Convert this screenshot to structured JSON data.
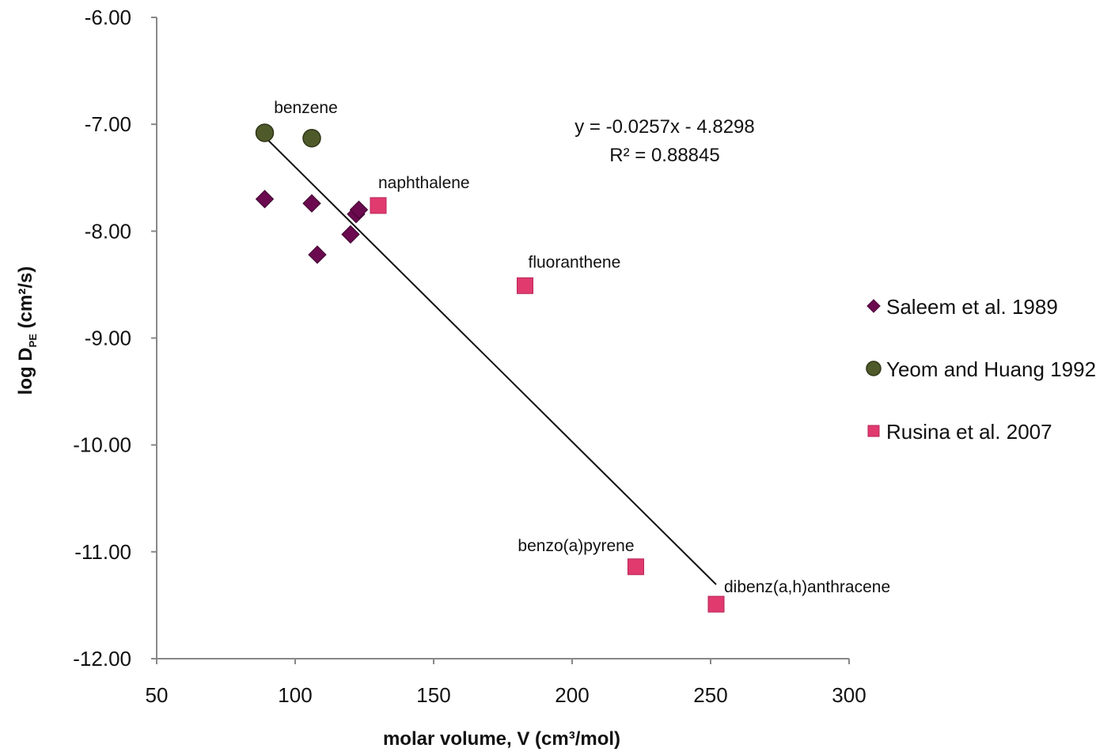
{
  "chart_data": {
    "type": "scatter",
    "title": "",
    "xlabel": "molar volume, V (cm³/mol)",
    "ylabel": "log D",
    "ylabel_sub": "PE",
    "ylabel_suffix": " (cm²/s)",
    "xlim": [
      50,
      300
    ],
    "ylim": [
      -12,
      -6
    ],
    "x_ticks": [
      50,
      100,
      150,
      200,
      250,
      300
    ],
    "x_tick_labels": [
      "50",
      "100",
      "150",
      "200",
      "250",
      "300"
    ],
    "y_ticks": [
      -6,
      -7,
      -8,
      -9,
      -10,
      -11,
      -12
    ],
    "y_tick_labels": [
      "-6.00",
      "-7.00",
      "-8.00",
      "-9.00",
      "-10.00",
      "-11.00",
      "-12.00"
    ],
    "grid": false,
    "legend_position": "right",
    "series": [
      {
        "name": "Saleem et al. 1989",
        "marker": "diamond",
        "color": "#6b0a4e",
        "points": [
          {
            "x": 89,
            "y": -7.7
          },
          {
            "x": 106,
            "y": -7.74
          },
          {
            "x": 108,
            "y": -8.22
          },
          {
            "x": 120,
            "y": -8.03
          },
          {
            "x": 122,
            "y": -7.84
          },
          {
            "x": 123,
            "y": -7.8
          }
        ]
      },
      {
        "name": "Yeom and Huang 1992",
        "marker": "circle",
        "color": "#4f5a2a",
        "points": [
          {
            "x": 89,
            "y": -7.08
          },
          {
            "x": 106,
            "y": -7.13
          }
        ]
      },
      {
        "name": "Rusina et al. 2007",
        "marker": "square",
        "color": "#e03a6f",
        "points": [
          {
            "x": 130,
            "y": -7.76
          },
          {
            "x": 183,
            "y": -8.51
          },
          {
            "x": 223,
            "y": -11.14
          },
          {
            "x": 252,
            "y": -11.49
          }
        ]
      }
    ],
    "trendline": {
      "x_start": 89,
      "x_end": 252,
      "slope": -0.0257,
      "intercept": -4.8298,
      "equation": "y = -0.0257x - 4.8298",
      "r2_label": "R² = 0.88845"
    },
    "annotations": [
      {
        "text": "benzene",
        "x": 89,
        "y": -7.08
      },
      {
        "text": "naphthalene",
        "x": 130,
        "y": -7.76
      },
      {
        "text": "fluoranthene",
        "x": 183,
        "y": -8.51
      },
      {
        "text": "benzo(a)pyrene",
        "x": 223,
        "y": -11.14
      },
      {
        "text": "dibenz(a,h)anthracene",
        "x": 252,
        "y": -11.49
      }
    ]
  }
}
